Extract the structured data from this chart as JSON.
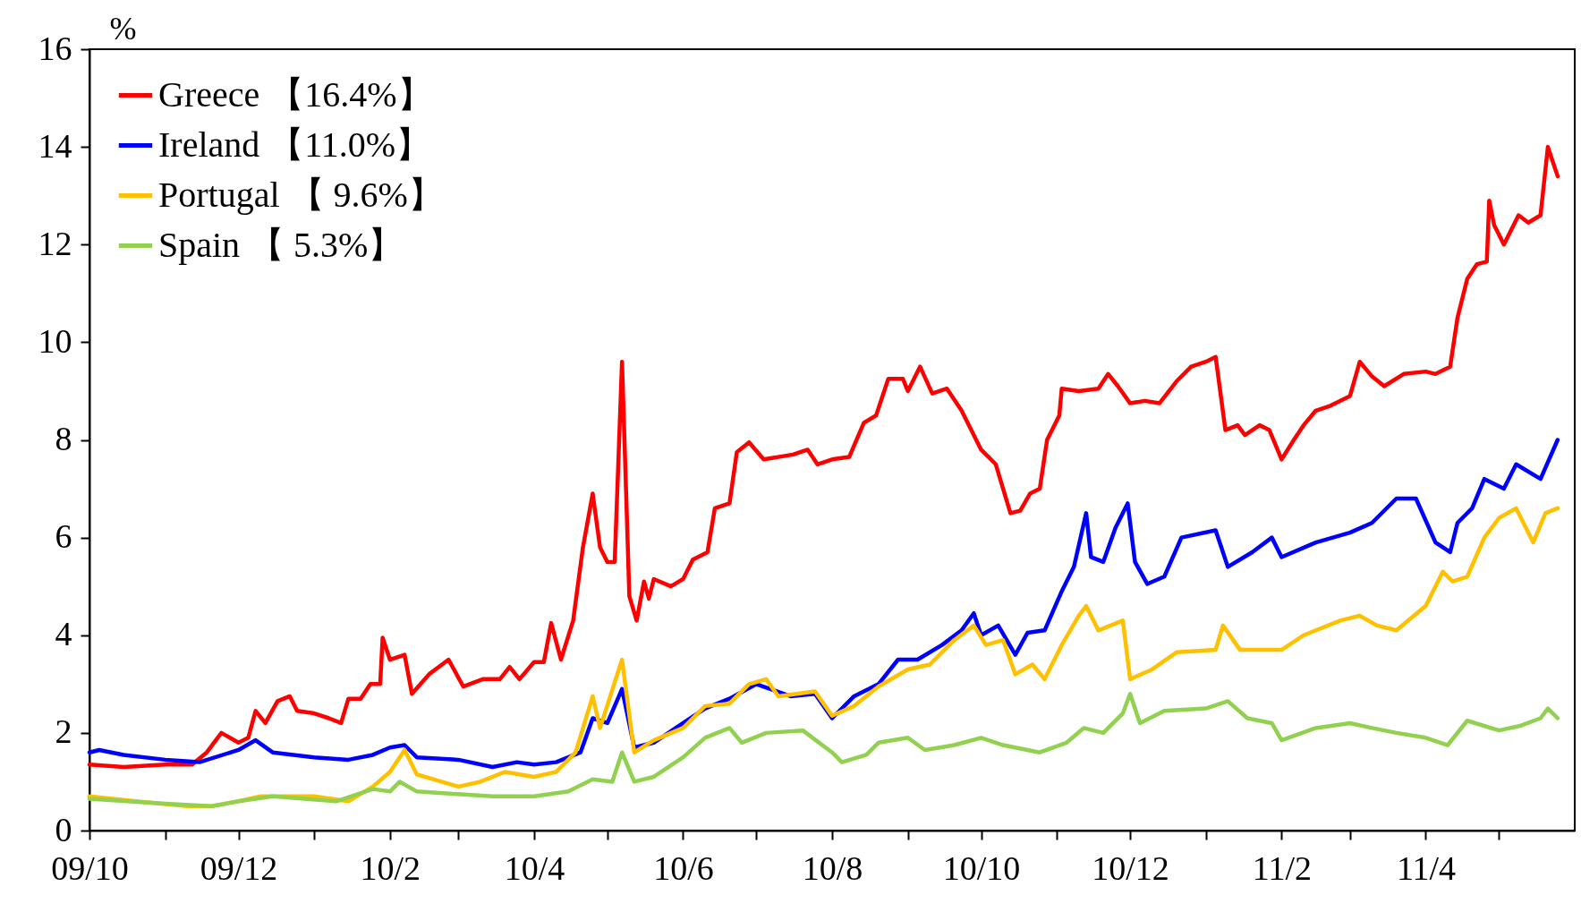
{
  "chart_data": {
    "type": "line",
    "ylabel": "%",
    "ylim": [
      0,
      16
    ],
    "yticks": [
      0,
      2,
      4,
      6,
      8,
      10,
      12,
      14,
      16
    ],
    "xlim": [
      "2009-10-01",
      "2011-06-01"
    ],
    "xticks": [
      {
        "value": "2009-10-01",
        "label": "09/10"
      },
      {
        "value": "2009-11-01",
        "label": null
      },
      {
        "value": "2009-12-01",
        "label": "09/12"
      },
      {
        "value": "2010-01-01",
        "label": null
      },
      {
        "value": "2010-02-01",
        "label": "10/2"
      },
      {
        "value": "2010-03-01",
        "label": null
      },
      {
        "value": "2010-04-01",
        "label": "10/4"
      },
      {
        "value": "2010-05-01",
        "label": null
      },
      {
        "value": "2010-06-01",
        "label": "10/6"
      },
      {
        "value": "2010-07-01",
        "label": null
      },
      {
        "value": "2010-08-01",
        "label": "10/8"
      },
      {
        "value": "2010-09-01",
        "label": null
      },
      {
        "value": "2010-10-01",
        "label": "10/10"
      },
      {
        "value": "2010-11-01",
        "label": null
      },
      {
        "value": "2010-12-01",
        "label": "10/12"
      },
      {
        "value": "2011-01-01",
        "label": null
      },
      {
        "value": "2011-02-01",
        "label": "11/2"
      },
      {
        "value": "2011-03-01",
        "label": null
      },
      {
        "value": "2011-04-01",
        "label": "11/4"
      },
      {
        "value": "2011-05-01",
        "label": null
      }
    ],
    "grid": false,
    "legend": "top left",
    "marker": "none",
    "line_style": "solid",
    "series": [
      {
        "name": "Greece 【16.4%】",
        "color": "#ff0000",
        "x": [
          "2009-10-01",
          "2009-10-15",
          "2009-11-01",
          "2009-11-12",
          "2009-11-18",
          "2009-11-24",
          "2009-12-01",
          "2009-12-05",
          "2009-12-08",
          "2009-12-12",
          "2009-12-17",
          "2009-12-22",
          "2009-12-25",
          "2010-01-01",
          "2010-01-07",
          "2010-01-12",
          "2010-01-15",
          "2010-01-20",
          "2010-01-24",
          "2010-01-28",
          "2010-01-29",
          "2010-02-01",
          "2010-02-07",
          "2010-02-10",
          "2010-02-17",
          "2010-02-25",
          "2010-03-03",
          "2010-03-11",
          "2010-03-18",
          "2010-03-22",
          "2010-03-26",
          "2010-04-01",
          "2010-04-05",
          "2010-04-08",
          "2010-04-12",
          "2010-04-17",
          "2010-04-21",
          "2010-04-25",
          "2010-04-28",
          "2010-05-01",
          "2010-05-04",
          "2010-05-07",
          "2010-05-10",
          "2010-05-13",
          "2010-05-16",
          "2010-05-18",
          "2010-05-20",
          "2010-05-27",
          "2010-06-01",
          "2010-06-05",
          "2010-06-11",
          "2010-06-14",
          "2010-06-20",
          "2010-06-23",
          "2010-06-28",
          "2010-07-04",
          "2010-07-16",
          "2010-07-22",
          "2010-07-26",
          "2010-08-01",
          "2010-08-08",
          "2010-08-14",
          "2010-08-19",
          "2010-08-24",
          "2010-08-30",
          "2010-09-01",
          "2010-09-06",
          "2010-09-11",
          "2010-09-17",
          "2010-09-23",
          "2010-10-01",
          "2010-10-07",
          "2010-10-13",
          "2010-10-17",
          "2010-10-21",
          "2010-10-25",
          "2010-10-28",
          "2010-11-02",
          "2010-11-03",
          "2010-11-10",
          "2010-11-18",
          "2010-11-22",
          "2010-11-26",
          "2010-12-01",
          "2010-12-07",
          "2010-12-13",
          "2010-12-20",
          "2010-12-26",
          "2011-01-01",
          "2011-01-05",
          "2011-01-09",
          "2011-01-14",
          "2011-01-17",
          "2011-01-23",
          "2011-01-27",
          "2011-02-01",
          "2011-02-06",
          "2011-02-10",
          "2011-02-15",
          "2011-02-21",
          "2011-03-01",
          "2011-03-05",
          "2011-03-10",
          "2011-03-15",
          "2011-03-23",
          "2011-04-01",
          "2011-04-05",
          "2011-04-11",
          "2011-04-14",
          "2011-04-18",
          "2011-04-22",
          "2011-04-26",
          "2011-04-27",
          "2011-04-29",
          "2011-05-03",
          "2011-05-09",
          "2011-05-13",
          "2011-05-18",
          "2011-05-21",
          "2011-05-23",
          "2011-05-25"
        ],
        "values": [
          1.35,
          1.3,
          1.35,
          1.35,
          1.6,
          2.0,
          1.8,
          1.9,
          2.45,
          2.2,
          2.65,
          2.75,
          2.45,
          2.4,
          2.3,
          2.2,
          2.7,
          2.7,
          3.0,
          3.0,
          3.95,
          3.5,
          3.6,
          2.8,
          3.2,
          3.5,
          2.95,
          3.1,
          3.1,
          3.35,
          3.1,
          3.45,
          3.45,
          4.25,
          3.5,
          4.3,
          5.8,
          6.9,
          5.8,
          5.5,
          5.5,
          9.6,
          4.8,
          4.3,
          5.1,
          4.75,
          5.15,
          5.0,
          5.15,
          5.55,
          5.7,
          6.6,
          6.7,
          7.75,
          7.95,
          7.6,
          7.7,
          7.8,
          7.5,
          7.6,
          7.65,
          8.35,
          8.5,
          9.25,
          9.25,
          9.0,
          9.5,
          8.95,
          9.05,
          8.6,
          7.8,
          7.5,
          6.5,
          6.55,
          6.9,
          7.0,
          8.0,
          8.5,
          9.05,
          9.0,
          9.05,
          9.35,
          9.1,
          8.75,
          8.8,
          8.75,
          9.2,
          9.5,
          9.6,
          9.7,
          8.2,
          8.3,
          8.1,
          8.3,
          8.2,
          7.6,
          8.0,
          8.3,
          8.6,
          8.7,
          8.9,
          9.6,
          9.3,
          9.1,
          9.35,
          9.4,
          9.35,
          9.5,
          10.5,
          11.3,
          11.6,
          11.65,
          12.9,
          12.4,
          12.0,
          12.6,
          12.45,
          12.6,
          14.0,
          13.7,
          13.4
        ]
      },
      {
        "name": "Ireland 【11.0%】",
        "color": "#0000ff",
        "x": [
          "2009-10-01",
          "2009-10-05",
          "2009-10-15",
          "2009-11-01",
          "2009-11-15",
          "2009-12-01",
          "2009-12-08",
          "2009-12-15",
          "2010-01-01",
          "2010-01-15",
          "2010-01-25",
          "2010-02-01",
          "2010-02-07",
          "2010-02-12",
          "2010-03-01",
          "2010-03-15",
          "2010-03-25",
          "2010-04-01",
          "2010-04-10",
          "2010-04-20",
          "2010-04-25",
          "2010-05-01",
          "2010-05-07",
          "2010-05-12",
          "2010-05-20",
          "2010-06-01",
          "2010-06-10",
          "2010-06-20",
          "2010-07-01",
          "2010-07-15",
          "2010-07-25",
          "2010-08-01",
          "2010-08-10",
          "2010-08-20",
          "2010-08-28",
          "2010-09-05",
          "2010-09-15",
          "2010-09-23",
          "2010-09-28",
          "2010-10-01",
          "2010-10-08",
          "2010-10-15",
          "2010-10-20",
          "2010-10-27",
          "2010-11-03",
          "2010-11-08",
          "2010-11-13",
          "2010-11-15",
          "2010-11-20",
          "2010-11-25",
          "2010-11-30",
          "2010-12-03",
          "2010-12-08",
          "2010-12-15",
          "2010-12-22",
          "2011-01-05",
          "2011-01-10",
          "2011-01-20",
          "2011-01-28",
          "2011-02-01",
          "2011-02-15",
          "2011-03-01",
          "2011-03-10",
          "2011-03-20",
          "2011-03-28",
          "2011-04-05",
          "2011-04-11",
          "2011-04-14",
          "2011-04-20",
          "2011-04-25",
          "2011-05-03",
          "2011-05-08",
          "2011-05-18",
          "2011-05-25"
        ],
        "values": [
          1.6,
          1.65,
          1.55,
          1.45,
          1.4,
          1.65,
          1.85,
          1.6,
          1.5,
          1.45,
          1.55,
          1.7,
          1.75,
          1.5,
          1.45,
          1.3,
          1.4,
          1.35,
          1.4,
          1.6,
          2.3,
          2.2,
          2.9,
          1.7,
          1.8,
          2.2,
          2.5,
          2.7,
          3.0,
          2.75,
          2.8,
          2.3,
          2.75,
          3.0,
          3.5,
          3.5,
          3.8,
          4.1,
          4.45,
          4.0,
          4.2,
          3.6,
          4.05,
          4.1,
          4.9,
          5.4,
          6.5,
          5.6,
          5.5,
          6.2,
          6.7,
          5.5,
          5.05,
          5.2,
          6.0,
          6.15,
          5.4,
          5.7,
          6.0,
          5.6,
          5.9,
          6.1,
          6.3,
          6.8,
          6.8,
          5.9,
          5.7,
          6.3,
          6.6,
          7.2,
          7.0,
          7.5,
          7.2,
          8.0
        ]
      },
      {
        "name": "Portugal 【 9.6%】",
        "color": "#ffc000",
        "x": [
          "2009-10-01",
          "2009-10-20",
          "2009-11-10",
          "2009-11-20",
          "2009-12-01",
          "2009-12-10",
          "2010-01-01",
          "2010-01-15",
          "2010-01-25",
          "2010-02-01",
          "2010-02-07",
          "2010-02-12",
          "2010-03-01",
          "2010-03-10",
          "2010-03-20",
          "2010-04-01",
          "2010-04-10",
          "2010-04-18",
          "2010-04-25",
          "2010-04-28",
          "2010-05-07",
          "2010-05-12",
          "2010-05-20",
          "2010-06-01",
          "2010-06-10",
          "2010-06-20",
          "2010-06-28",
          "2010-07-05",
          "2010-07-10",
          "2010-07-25",
          "2010-08-01",
          "2010-08-10",
          "2010-08-20",
          "2010-09-01",
          "2010-09-10",
          "2010-09-20",
          "2010-09-28",
          "2010-10-03",
          "2010-10-10",
          "2010-10-15",
          "2010-10-22",
          "2010-10-27",
          "2010-11-03",
          "2010-11-10",
          "2010-11-13",
          "2010-11-18",
          "2010-11-28",
          "2010-12-01",
          "2010-12-10",
          "2010-12-20",
          "2011-01-05",
          "2011-01-08",
          "2011-01-15",
          "2011-02-01",
          "2011-02-10",
          "2011-02-25",
          "2011-03-05",
          "2011-03-12",
          "2011-03-20",
          "2011-04-01",
          "2011-04-08",
          "2011-04-12",
          "2011-04-18",
          "2011-04-25",
          "2011-05-01",
          "2011-05-08",
          "2011-05-15",
          "2011-05-20",
          "2011-05-25"
        ],
        "values": [
          0.7,
          0.6,
          0.5,
          0.5,
          0.6,
          0.7,
          0.7,
          0.6,
          0.9,
          1.2,
          1.65,
          1.15,
          0.9,
          1.0,
          1.2,
          1.1,
          1.2,
          1.6,
          2.75,
          2.1,
          3.5,
          1.6,
          1.85,
          2.1,
          2.55,
          2.6,
          3.0,
          3.1,
          2.75,
          2.85,
          2.35,
          2.55,
          2.95,
          3.3,
          3.4,
          3.9,
          4.2,
          3.8,
          3.9,
          3.2,
          3.4,
          3.1,
          3.8,
          4.4,
          4.6,
          4.1,
          4.3,
          3.1,
          3.3,
          3.65,
          3.7,
          4.2,
          3.7,
          3.7,
          4.0,
          4.3,
          4.4,
          4.2,
          4.1,
          4.6,
          5.3,
          5.1,
          5.2,
          6.0,
          6.4,
          6.6,
          5.9,
          6.5,
          6.6
        ]
      },
      {
        "name": "Spain 【 5.3%】",
        "color": "#92d050",
        "x": [
          "2009-10-01",
          "2009-11-01",
          "2009-11-20",
          "2009-12-01",
          "2009-12-15",
          "2010-01-10",
          "2010-01-25",
          "2010-02-01",
          "2010-02-05",
          "2010-02-12",
          "2010-03-15",
          "2010-04-01",
          "2010-04-15",
          "2010-04-25",
          "2010-05-03",
          "2010-05-07",
          "2010-05-12",
          "2010-05-20",
          "2010-06-01",
          "2010-06-10",
          "2010-06-20",
          "2010-06-25",
          "2010-07-05",
          "2010-07-20",
          "2010-08-01",
          "2010-08-05",
          "2010-08-15",
          "2010-08-20",
          "2010-09-01",
          "2010-09-08",
          "2010-09-20",
          "2010-10-01",
          "2010-10-10",
          "2010-10-25",
          "2010-11-05",
          "2010-11-12",
          "2010-11-20",
          "2010-11-28",
          "2010-12-01",
          "2010-12-05",
          "2010-12-15",
          "2011-01-01",
          "2011-01-10",
          "2011-01-18",
          "2011-01-28",
          "2011-02-01",
          "2011-02-15",
          "2011-03-01",
          "2011-03-10",
          "2011-03-20",
          "2011-04-01",
          "2011-04-10",
          "2011-04-18",
          "2011-05-01",
          "2011-05-10",
          "2011-05-18",
          "2011-05-21",
          "2011-05-25"
        ],
        "values": [
          0.65,
          0.55,
          0.5,
          0.6,
          0.7,
          0.6,
          0.85,
          0.8,
          1.0,
          0.8,
          0.7,
          0.7,
          0.8,
          1.05,
          1.0,
          1.6,
          1.0,
          1.1,
          1.5,
          1.9,
          2.1,
          1.8,
          2.0,
          2.05,
          1.6,
          1.4,
          1.55,
          1.8,
          1.9,
          1.65,
          1.75,
          1.9,
          1.75,
          1.6,
          1.8,
          2.1,
          2.0,
          2.4,
          2.8,
          2.2,
          2.45,
          2.5,
          2.65,
          2.3,
          2.2,
          1.85,
          2.1,
          2.2,
          2.1,
          2.0,
          1.9,
          1.75,
          2.25,
          2.05,
          2.15,
          2.3,
          2.5,
          2.3
        ]
      }
    ]
  }
}
